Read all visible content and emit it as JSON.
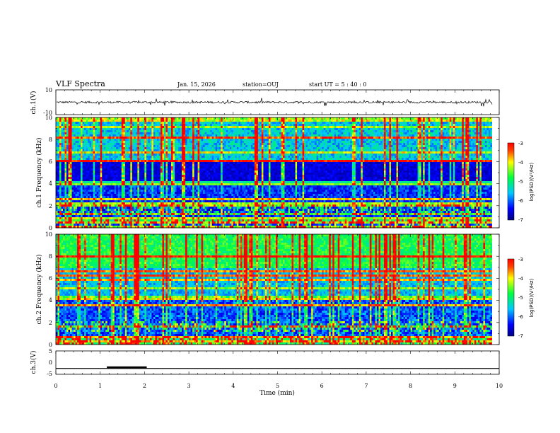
{
  "header": {
    "title": "VLF Spectra",
    "date": "Jan. 15, 2026",
    "station": "station=OUJ",
    "start_ut": "start UT =  5 : 40 : 0"
  },
  "chart_data": {
    "type": "heatmap",
    "title": "VLF Spectra",
    "xlabel": "Time (min)",
    "xlim": [
      0,
      10
    ],
    "x_ticks": [
      "0",
      "1",
      "2",
      "3",
      "4",
      "5",
      "6",
      "7",
      "8",
      "9",
      "10"
    ],
    "panels": [
      {
        "name": "ch.1 waveform",
        "ylabel": "ch.1(V)",
        "ylim": [
          -10,
          10
        ],
        "y_ticks": [
          "10",
          "-10"
        ],
        "baseline": 0
      },
      {
        "name": "ch.1 spectrogram",
        "ylabel": "ch.1 Frequency (kHz)",
        "ylim": [
          0,
          10
        ],
        "y_ticks": [
          "10",
          "8",
          "6",
          "4",
          "2",
          "0"
        ]
      },
      {
        "name": "ch.2 spectrogram",
        "ylabel": "ch.2 Frequency (kHz)",
        "ylim": [
          0,
          10
        ],
        "y_ticks": [
          "10",
          "8",
          "6",
          "4",
          "2",
          "0"
        ]
      },
      {
        "name": "ch.3 waveform",
        "ylabel": "ch.3(V)",
        "ylim": [
          -5,
          5
        ],
        "y_ticks": [
          "5",
          "0",
          "-5"
        ],
        "level": -2.5,
        "pulse": {
          "start_min": 1.15,
          "end_min": 2.05,
          "level": -2.0
        }
      }
    ],
    "colorbar": {
      "label": "log(PSD)(V²/Hz)",
      "range": [
        -7,
        -3
      ],
      "ticks": [
        "-3",
        "-4",
        "-5",
        "-6",
        "-7"
      ],
      "colormap": "jet"
    }
  }
}
